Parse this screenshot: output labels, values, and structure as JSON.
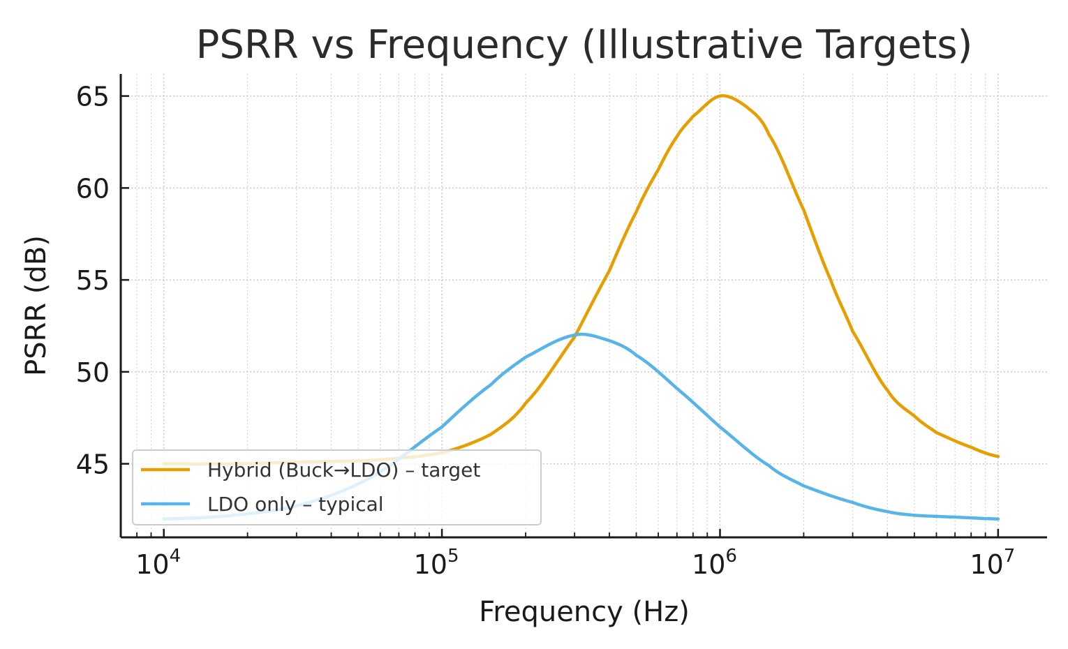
{
  "chart_data": {
    "type": "line",
    "title": "PSRR vs Frequency (Illustrative Targets)",
    "xlabel": "Frequency (Hz)",
    "ylabel": "PSRR (dB)",
    "xscale": "log",
    "xlim": [
      7000,
      15000000
    ],
    "ylim": [
      41,
      66.2
    ],
    "x_ticks": [
      {
        "value": 10000,
        "base": "10",
        "exp": "4"
      },
      {
        "value": 100000,
        "base": "10",
        "exp": "5"
      },
      {
        "value": 1000000,
        "base": "10",
        "exp": "6"
      },
      {
        "value": 10000000,
        "base": "10",
        "exp": "7"
      }
    ],
    "y_ticks": [
      {
        "value": 45,
        "label": "45"
      },
      {
        "value": 50,
        "label": "50"
      },
      {
        "value": 55,
        "label": "55"
      },
      {
        "value": 60,
        "label": "60"
      },
      {
        "value": 65,
        "label": "65"
      }
    ],
    "grid": true,
    "legend_position": "lower-left",
    "series": [
      {
        "name": "Hybrid (Buck→LDO) – target",
        "color": "#E69F00",
        "x": [
          10000,
          17800,
          31600,
          56200,
          100000,
          150000,
          200000,
          300000,
          400000,
          500000,
          600000,
          700000,
          800000,
          1000000,
          1250000,
          1500000,
          2000000,
          2500000,
          3000000,
          4000000,
          5000000,
          6000000,
          8000000,
          10000000
        ],
        "y": [
          45.0,
          45.0,
          45.1,
          45.2,
          45.6,
          46.6,
          48.3,
          51.9,
          55.5,
          58.7,
          61.0,
          62.8,
          63.9,
          65.0,
          64.4,
          62.9,
          58.8,
          55.0,
          52.2,
          49.0,
          47.6,
          46.7,
          45.9,
          45.4
        ]
      },
      {
        "name": "LDO only – typical",
        "color": "#56B4E9",
        "x": [
          10000,
          17800,
          31600,
          56200,
          100000,
          150000,
          200000,
          300000,
          400000,
          500000,
          700000,
          1000000,
          1500000,
          2000000,
          3000000,
          4000000,
          5000000,
          7000000,
          10000000
        ],
        "y": [
          42.0,
          42.2,
          42.8,
          44.3,
          47.0,
          49.3,
          50.8,
          52.0,
          51.7,
          50.9,
          49.1,
          47.0,
          44.9,
          43.8,
          42.9,
          42.4,
          42.2,
          42.1,
          42.0
        ]
      }
    ]
  }
}
